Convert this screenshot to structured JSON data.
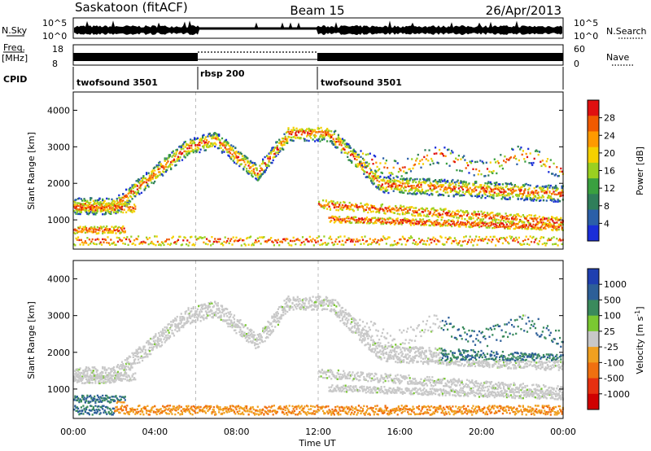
{
  "header": {
    "station": "Saskatoon (fitACF)",
    "beam": "Beam 15",
    "date": "26/Apr/2013"
  },
  "noise_panel": {
    "left_label": "N.Sky",
    "right_label": "N.Search",
    "left_ticks": [
      "10^5",
      "10^0"
    ],
    "right_ticks": [
      "10^5",
      "10^0"
    ]
  },
  "freq_panel": {
    "left_label": "Freq.",
    "left_unit": "[MHz]",
    "left_ticks": [
      "18",
      "8"
    ],
    "right_label": "Nave",
    "right_ticks": [
      "60",
      "0"
    ]
  },
  "cpid": {
    "label": "CPID",
    "segments": [
      {
        "name": "twofsound 3501",
        "start_hour": 0,
        "end_hour": 6
      },
      {
        "name": "rbsp 200",
        "start_hour": 6,
        "end_hour": 12
      },
      {
        "name": "twofsound 3501",
        "start_hour": 12,
        "end_hour": 24
      }
    ]
  },
  "time_axis": {
    "label": "Time UT",
    "ticks": [
      "00:00",
      "04:00",
      "08:00",
      "12:00",
      "16:00",
      "20:00",
      "00:00"
    ]
  },
  "chart_data": [
    {
      "type": "heatmap",
      "quantity": "power",
      "ylabel": "Slant Range [km]",
      "yticks": [
        1000,
        2000,
        3000,
        4000
      ],
      "ylim": [
        200,
        4500
      ],
      "xlim": [
        0,
        24
      ],
      "colorbar": {
        "label": "Power [dB]",
        "ticks": [
          "28",
          "24",
          "20",
          "16",
          "12",
          "8",
          "4"
        ],
        "colors": [
          "#e01010",
          "#f05a00",
          "#ff9a00",
          "#f5d000",
          "#9ad020",
          "#3aa040",
          "#2f7e5a",
          "#2b5fa8",
          "#1a2ed8"
        ]
      }
    },
    {
      "type": "heatmap",
      "quantity": "velocity",
      "ylabel": "Slant Range [km]",
      "yticks": [
        1000,
        2000,
        3000,
        4000
      ],
      "ylim": [
        200,
        4500
      ],
      "xlim": [
        0,
        24
      ],
      "colorbar": {
        "label_main": "Velocity",
        "label_unit": "[m s",
        "label_exp": "-1",
        "label_close": "]",
        "ticks": [
          "1000",
          "500",
          "100",
          "25",
          "-25",
          "-100",
          "-500",
          "-1000"
        ],
        "colors": [
          "#1f3fb0",
          "#2d5f98",
          "#3a8a5c",
          "#7ac832",
          "#c8c8c8",
          "#f0a020",
          "#f07010",
          "#e63010",
          "#d00000"
        ]
      }
    }
  ]
}
